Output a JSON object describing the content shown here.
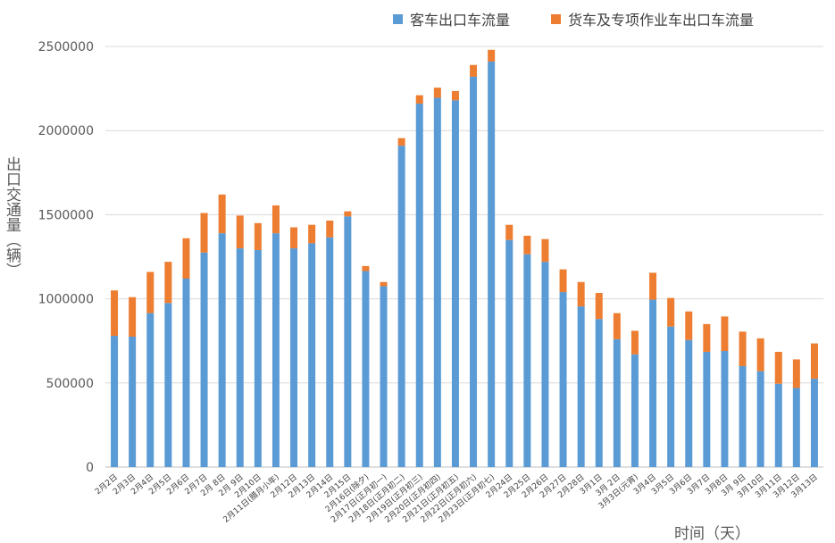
{
  "legend_colors": {
    "passenger": "#5b9bd5",
    "freight": "#ed7d31"
  },
  "chart_data": {
    "type": "bar",
    "stacked": true,
    "title": "",
    "xlabel": "时间（天）",
    "ylabel": "出口交通量（辆）",
    "ylim": [
      0,
      2500000
    ],
    "yticks": [
      "0",
      "500000",
      "1000000",
      "1500000",
      "2000000",
      "2500000"
    ],
    "grid": true,
    "legend_position": "top",
    "categories": [
      "2月2日",
      "2月3日",
      "2月4日",
      "2月5日",
      "2月6日",
      "2月7日",
      "2月 8日",
      "2月 9日",
      "2月10日",
      "2月11日(腊月小年)",
      "2月12日",
      "2月13日",
      "2月14日",
      "2月15日",
      "2月16日(除夕)",
      "2月17日(正月初一)",
      "2月18日(正月初二)",
      "2月19日(正月初三)",
      "2月20日(正月初四)",
      "2月21日(正月初五)",
      "2月22日(正月初六)",
      "2月23日(正月初七)",
      "2月24日",
      "2月25日",
      "2月26日",
      "2月27日",
      "2月28日",
      "3月1日",
      "3月 2日",
      "3月3日(元宵)",
      "3月4日",
      "3月5日",
      "3月6日",
      "3月7日",
      "3月8日",
      "3月 9日",
      "3月10日",
      "3月11日",
      "3月12日",
      "3月13日"
    ],
    "series": [
      {
        "name": "客车出口车流量",
        "color": "#5b9bd5",
        "values": [
          780000,
          775000,
          915000,
          975000,
          1120000,
          1275000,
          1390000,
          1300000,
          1290000,
          1390000,
          1300000,
          1330000,
          1365000,
          1490000,
          1165000,
          1075000,
          1910000,
          2160000,
          2195000,
          2180000,
          2320000,
          2410000,
          1350000,
          1265000,
          1220000,
          1040000,
          955000,
          880000,
          760000,
          670000,
          995000,
          835000,
          755000,
          685000,
          690000,
          600000,
          570000,
          495000,
          470000,
          525000
        ]
      },
      {
        "name": "货车及专项作业车出口车流量",
        "color": "#ed7d31",
        "values": [
          270000,
          235000,
          245000,
          245000,
          240000,
          235000,
          230000,
          195000,
          160000,
          165000,
          125000,
          110000,
          100000,
          30000,
          30000,
          25000,
          45000,
          50000,
          60000,
          55000,
          70000,
          70000,
          90000,
          110000,
          135000,
          135000,
          145000,
          155000,
          155000,
          140000,
          160000,
          170000,
          170000,
          165000,
          205000,
          205000,
          195000,
          190000,
          170000,
          210000
        ]
      }
    ]
  }
}
